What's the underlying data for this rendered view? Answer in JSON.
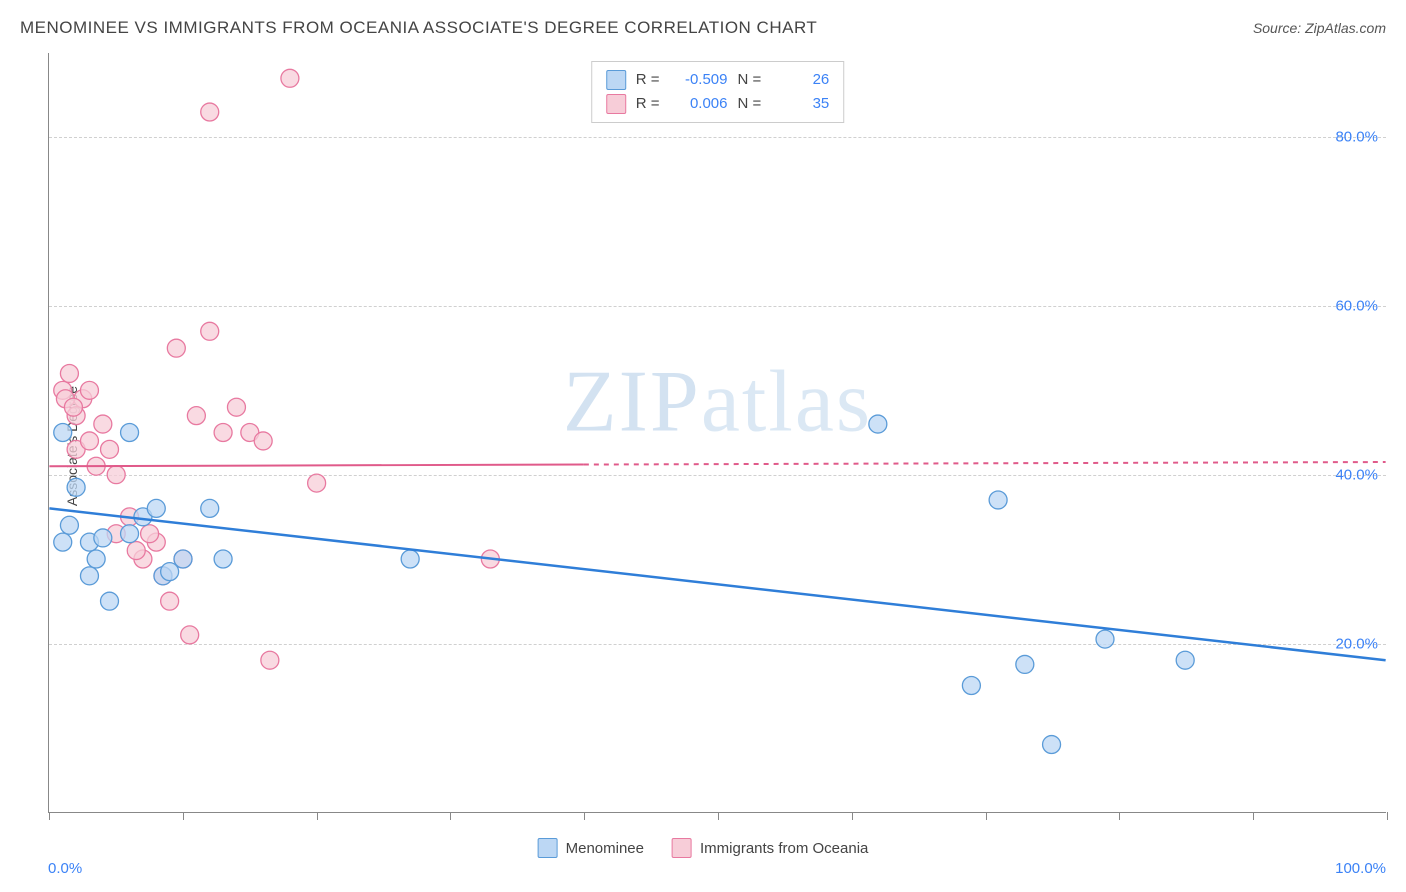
{
  "header": {
    "title": "MENOMINEE VS IMMIGRANTS FROM OCEANIA ASSOCIATE'S DEGREE CORRELATION CHART",
    "source_prefix": "Source: ",
    "source_name": "ZipAtlas.com"
  },
  "watermark": {
    "part1": "ZIP",
    "part2": "atlas"
  },
  "chart": {
    "type": "scatter",
    "y_axis_label": "Associate's Degree",
    "background_color": "#ffffff",
    "grid_color": "#d0d0d0",
    "axis_color": "#888888",
    "xlim": [
      0,
      100
    ],
    "ylim": [
      0,
      90
    ],
    "x_ticks": [
      0,
      10,
      20,
      30,
      40,
      50,
      60,
      70,
      80,
      90,
      100
    ],
    "x_start_label": "0.0%",
    "x_end_label": "100.0%",
    "y_gridlines": [
      {
        "value": 20,
        "label": "20.0%"
      },
      {
        "value": 40,
        "label": "40.0%"
      },
      {
        "value": 60,
        "label": "60.0%"
      },
      {
        "value": 80,
        "label": "80.0%"
      }
    ],
    "y_label_color": "#3b82f6",
    "series": [
      {
        "name": "Menominee",
        "marker_fill": "#bcd7f4",
        "marker_stroke": "#5a9bd8",
        "marker_radius": 9,
        "line_color": "#2f7ed8",
        "line_width": 2.5,
        "trend": {
          "x1": 0,
          "y1": 36,
          "x2": 100,
          "y2": 18,
          "dash_after_x": null
        },
        "R": "-0.509",
        "N": "26",
        "points": [
          {
            "x": 1,
            "y": 45
          },
          {
            "x": 2,
            "y": 38.5
          },
          {
            "x": 1.5,
            "y": 34
          },
          {
            "x": 6,
            "y": 45
          },
          {
            "x": 3,
            "y": 32
          },
          {
            "x": 4,
            "y": 32.5
          },
          {
            "x": 3,
            "y": 28
          },
          {
            "x": 4.5,
            "y": 25
          },
          {
            "x": 7,
            "y": 35
          },
          {
            "x": 8,
            "y": 36
          },
          {
            "x": 8.5,
            "y": 28
          },
          {
            "x": 9,
            "y": 28.5
          },
          {
            "x": 10,
            "y": 30
          },
          {
            "x": 12,
            "y": 36
          },
          {
            "x": 13,
            "y": 30
          },
          {
            "x": 27,
            "y": 30
          },
          {
            "x": 62,
            "y": 46
          },
          {
            "x": 71,
            "y": 37
          },
          {
            "x": 69,
            "y": 15
          },
          {
            "x": 73,
            "y": 17.5
          },
          {
            "x": 75,
            "y": 8
          },
          {
            "x": 79,
            "y": 20.5
          },
          {
            "x": 85,
            "y": 18
          },
          {
            "x": 1,
            "y": 32
          },
          {
            "x": 3.5,
            "y": 30
          },
          {
            "x": 6,
            "y": 33
          }
        ]
      },
      {
        "name": "Immigrants from Oceania",
        "marker_fill": "#f7cdd8",
        "marker_stroke": "#e879a0",
        "marker_radius": 9,
        "line_color": "#e05a8a",
        "line_width": 2,
        "trend": {
          "x1": 0,
          "y1": 41,
          "x2": 100,
          "y2": 41.5,
          "dash_after_x": 40
        },
        "R": "0.006",
        "N": "35",
        "points": [
          {
            "x": 1,
            "y": 50
          },
          {
            "x": 1.5,
            "y": 52
          },
          {
            "x": 2,
            "y": 47
          },
          {
            "x": 2,
            "y": 43
          },
          {
            "x": 3,
            "y": 44
          },
          {
            "x": 3.5,
            "y": 41
          },
          {
            "x": 4,
            "y": 46
          },
          {
            "x": 5,
            "y": 40
          },
          {
            "x": 5,
            "y": 33
          },
          {
            "x": 6,
            "y": 35
          },
          {
            "x": 7,
            "y": 30
          },
          {
            "x": 8,
            "y": 32
          },
          {
            "x": 8.5,
            "y": 28
          },
          {
            "x": 9,
            "y": 25
          },
          {
            "x": 9.5,
            "y": 55
          },
          {
            "x": 10,
            "y": 30
          },
          {
            "x": 10.5,
            "y": 21
          },
          {
            "x": 11,
            "y": 47
          },
          {
            "x": 12,
            "y": 57
          },
          {
            "x": 12,
            "y": 83
          },
          {
            "x": 13,
            "y": 45
          },
          {
            "x": 14,
            "y": 48
          },
          {
            "x": 15,
            "y": 45
          },
          {
            "x": 16,
            "y": 44
          },
          {
            "x": 16.5,
            "y": 18
          },
          {
            "x": 18,
            "y": 87
          },
          {
            "x": 20,
            "y": 39
          },
          {
            "x": 7.5,
            "y": 33
          },
          {
            "x": 6.5,
            "y": 31
          },
          {
            "x": 4.5,
            "y": 43
          },
          {
            "x": 33,
            "y": 30
          },
          {
            "x": 2.5,
            "y": 49
          },
          {
            "x": 3,
            "y": 50
          },
          {
            "x": 1.2,
            "y": 49
          },
          {
            "x": 1.8,
            "y": 48
          }
        ]
      }
    ],
    "legend_top_labels": {
      "r_label": "R =",
      "n_label": "N ="
    },
    "legend_bottom": [
      {
        "label": "Menominee",
        "fill": "#bcd7f4",
        "stroke": "#5a9bd8"
      },
      {
        "label": "Immigrants from Oceania",
        "fill": "#f7cdd8",
        "stroke": "#e879a0"
      }
    ]
  }
}
